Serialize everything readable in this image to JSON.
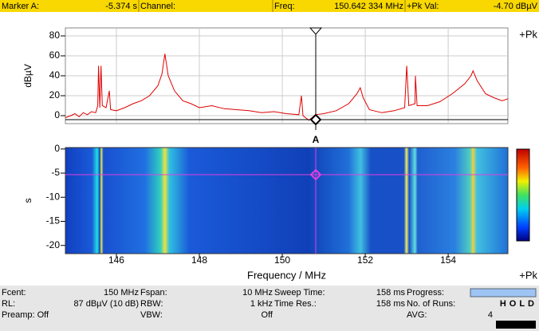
{
  "header": {
    "fields": [
      {
        "label": "Marker A:",
        "value": "-5.374 s"
      },
      {
        "label": "Channel:"
      },
      {
        "label": "Freq:",
        "value": "150.642 334 MHz"
      },
      {
        "label": "+Pk Val:",
        "value": "-4.70 dBµV"
      }
    ]
  },
  "chart_data": [
    {
      "type": "line",
      "ylabel": "dBµV",
      "xlim": [
        144.77,
        155.44
      ],
      "ylim": [
        -8,
        88
      ],
      "yticks": [
        0,
        20,
        40,
        60,
        80
      ],
      "grid": true,
      "trace_label": "+Pk",
      "marker_label": "A",
      "series": [
        {
          "name": "+Pk",
          "color": "#e00000",
          "x": [
            144.77,
            144.9,
            145.0,
            145.1,
            145.2,
            145.3,
            145.4,
            145.5,
            145.55,
            145.57,
            145.6,
            145.63,
            145.66,
            145.75,
            145.83,
            145.86,
            146.0,
            146.2,
            146.4,
            146.6,
            146.8,
            147.0,
            147.1,
            147.17,
            147.25,
            147.4,
            147.6,
            147.8,
            148.0,
            148.3,
            148.6,
            148.9,
            149.2,
            149.5,
            149.8,
            150.1,
            150.4,
            150.46,
            150.5,
            150.64,
            150.8,
            151.0,
            151.3,
            151.6,
            151.8,
            151.88,
            151.95,
            152.1,
            152.4,
            152.7,
            152.95,
            153.0,
            153.05,
            153.2,
            153.21,
            153.25,
            153.5,
            153.8,
            154.1,
            154.4,
            154.55,
            154.6,
            154.7,
            154.9,
            155.1,
            155.3,
            155.44
          ],
          "values": [
            -2,
            0,
            2,
            -1,
            3,
            1,
            4,
            3,
            10,
            50,
            8,
            50,
            10,
            8,
            25,
            6,
            5,
            8,
            12,
            15,
            20,
            30,
            42,
            62,
            40,
            25,
            15,
            12,
            8,
            10,
            7,
            6,
            5,
            3,
            4,
            2,
            1,
            20,
            0,
            -4.7,
            1,
            2,
            5,
            12,
            22,
            28,
            18,
            6,
            3,
            5,
            8,
            50,
            10,
            12,
            40,
            10,
            10,
            14,
            22,
            32,
            40,
            45,
            35,
            22,
            18,
            15,
            17
          ]
        }
      ]
    },
    {
      "type": "waterfall",
      "ylabel": "s",
      "xlabel": "Frequency / MHz",
      "xlim": [
        144.77,
        155.44
      ],
      "xticks": [
        146,
        148,
        150,
        152,
        154
      ],
      "ylim": [
        -21.7,
        0.3
      ],
      "yticks": [
        0,
        -5,
        -10,
        -15,
        -20
      ],
      "trace_label": "+Pk"
    }
  ],
  "footer": {
    "rows": [
      [
        {
          "label": "Fcent:",
          "value": "150 MHz"
        },
        {
          "label": "Fspan:",
          "value": "10 MHz"
        },
        {
          "label": "Sweep Time:",
          "value": "158 ms"
        },
        {
          "label": "Progress:"
        }
      ],
      [
        {
          "label": "RL:",
          "value": "87 dBµV (10 dB)"
        },
        {
          "label": "RBW:",
          "value": "1 kHz"
        },
        {
          "label": "Time Res.:",
          "value": "158 ms"
        },
        {
          "label": "No. of Runs:",
          "value": "HOLD"
        }
      ],
      [
        {
          "label": "Preamp: Off"
        },
        {
          "label": "VBW:",
          "value": "Off"
        },
        {},
        {
          "label": "AVG:",
          "value": "4"
        }
      ]
    ]
  }
}
